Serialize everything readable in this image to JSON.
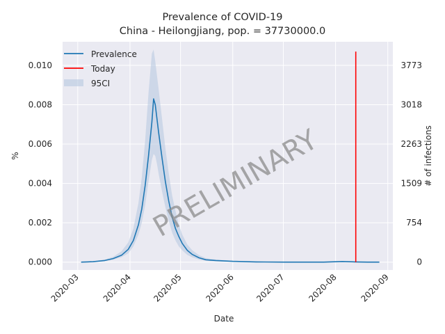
{
  "chart_data": {
    "type": "line",
    "title": "Prevalence of COVID-19",
    "subtitle": "China - Heilongjiang, pop. = 37730000.0",
    "xlabel": "Date",
    "ylabel": "%",
    "y2label": "# of infections",
    "ylim": [
      -0.0004,
      0.0112
    ],
    "y_ticks": [
      0.0,
      0.002,
      0.004,
      0.006,
      0.008,
      0.01
    ],
    "y_tick_labels": [
      "0.000",
      "0.002",
      "0.004",
      "0.006",
      "0.008",
      "0.010"
    ],
    "y2_ticks": [
      0,
      754,
      1509,
      2263,
      3018,
      3773
    ],
    "y2_tick_labels": [
      "0",
      "754",
      "1509",
      "2263",
      "3018",
      "3773"
    ],
    "x_ticks": [
      "2020-03-01",
      "2020-04-01",
      "2020-05-01",
      "2020-06-01",
      "2020-07-01",
      "2020-08-01",
      "2020-09-01"
    ],
    "x_tick_labels": [
      "2020-03",
      "2020-04",
      "2020-05",
      "2020-06",
      "2020-07",
      "2020-08",
      "2020-09"
    ],
    "xlim": [
      "2020-02-21",
      "2020-09-04"
    ],
    "grid": true,
    "legend_position": "top-left",
    "watermark": "PRELIMINARY",
    "colors": {
      "prevalence": "#1f77b4",
      "today": "#ff0000",
      "ci": "#b0c4de",
      "background": "#eaeaf2"
    },
    "legend": [
      "Prevalence",
      "Today",
      "95CI"
    ],
    "series": [
      {
        "name": "Prevalence",
        "x": [
          "2020-03-03",
          "2020-03-10",
          "2020-03-17",
          "2020-03-22",
          "2020-03-27",
          "2020-03-31",
          "2020-04-03",
          "2020-04-06",
          "2020-04-08",
          "2020-04-10",
          "2020-04-12",
          "2020-04-14",
          "2020-04-15",
          "2020-04-16",
          "2020-04-17",
          "2020-04-18",
          "2020-04-20",
          "2020-04-22",
          "2020-04-24",
          "2020-04-26",
          "2020-04-28",
          "2020-04-30",
          "2020-05-02",
          "2020-05-05",
          "2020-05-08",
          "2020-05-12",
          "2020-05-16",
          "2020-05-22",
          "2020-06-01",
          "2020-06-15",
          "2020-07-01",
          "2020-07-25",
          "2020-08-05",
          "2020-08-13",
          "2020-08-20",
          "2020-08-27"
        ],
        "values": [
          0.0,
          2e-05,
          8e-05,
          0.00018,
          0.00035,
          0.00065,
          0.0011,
          0.0019,
          0.0027,
          0.0039,
          0.0054,
          0.0071,
          0.0083,
          0.008,
          0.0073,
          0.0066,
          0.0053,
          0.0041,
          0.0031,
          0.0023,
          0.0017,
          0.0013,
          0.00095,
          0.0006,
          0.00039,
          0.00022,
          0.00012,
          8e-05,
          4e-05,
          1e-05,
          0.0,
          0.0,
          3e-05,
          1e-05,
          0.0,
          0.0
        ]
      },
      {
        "name": "95CI",
        "x": [
          "2020-03-03",
          "2020-03-10",
          "2020-03-17",
          "2020-03-22",
          "2020-03-27",
          "2020-03-31",
          "2020-04-03",
          "2020-04-06",
          "2020-04-08",
          "2020-04-10",
          "2020-04-12",
          "2020-04-14",
          "2020-04-15",
          "2020-04-16",
          "2020-04-17",
          "2020-04-18",
          "2020-04-20",
          "2020-04-22",
          "2020-04-24",
          "2020-04-26",
          "2020-04-28",
          "2020-04-30",
          "2020-05-02",
          "2020-05-05",
          "2020-05-08",
          "2020-05-12",
          "2020-05-16",
          "2020-05-22",
          "2020-06-01",
          "2020-06-15",
          "2020-07-01",
          "2020-07-25",
          "2020-08-05",
          "2020-08-13",
          "2020-08-20",
          "2020-08-27"
        ],
        "lower": [
          0.0,
          1e-05,
          5e-05,
          0.00012,
          0.00025,
          0.00045,
          0.0008,
          0.0014,
          0.002,
          0.0029,
          0.0041,
          0.0052,
          0.0055,
          0.0054,
          0.005,
          0.0045,
          0.0036,
          0.0028,
          0.0021,
          0.0015,
          0.0011,
          0.0008,
          0.0006,
          0.00037,
          0.00024,
          0.00013,
          7e-05,
          4e-05,
          2e-05,
          0.0,
          0.0,
          0.0,
          1e-05,
          0.0,
          0.0,
          0.0
        ],
        "upper": [
          1e-05,
          4e-05,
          0.00013,
          0.00027,
          0.00055,
          0.001,
          0.0017,
          0.003,
          0.0043,
          0.0062,
          0.0086,
          0.0106,
          0.0108,
          0.0102,
          0.0095,
          0.0088,
          0.0073,
          0.0058,
          0.0045,
          0.0034,
          0.0026,
          0.0019,
          0.0014,
          0.0009,
          0.0006,
          0.00035,
          0.0002,
          0.00013,
          7e-05,
          3e-05,
          1e-05,
          1e-05,
          6e-05,
          3e-05,
          1e-05,
          1e-05
        ]
      },
      {
        "name": "Today",
        "x": [
          "2020-08-13",
          "2020-08-13"
        ],
        "values": [
          0.0,
          0.0107
        ]
      }
    ]
  }
}
